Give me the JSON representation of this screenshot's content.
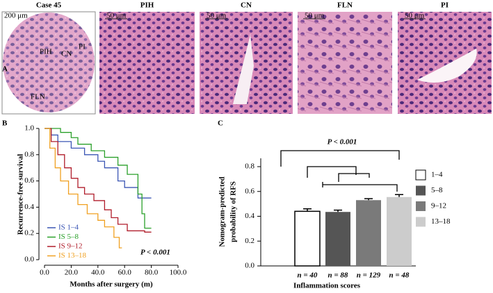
{
  "figure": {
    "panel_labels": [
      "A",
      "B",
      "C"
    ],
    "images": [
      {
        "title": "Case 45",
        "scale": "200 μm",
        "regions": [
          "PIH",
          "CN",
          "PI",
          "FLN"
        ]
      },
      {
        "title": "PIH",
        "scale": "50 μm"
      },
      {
        "title": "CN",
        "scale": "50 μm"
      },
      {
        "title": "FLN",
        "scale": "50 μm"
      },
      {
        "title": "PI",
        "scale": "50 μm"
      }
    ]
  },
  "chart_data": [
    {
      "type": "line",
      "step": true,
      "xlabel": "Months after surgery (m)",
      "ylabel": "Recurrence-free survival",
      "annotation": "P < 0.001",
      "xlim": [
        0,
        100
      ],
      "xticks": [
        {
          "value": 0,
          "label": "0.0"
        },
        {
          "value": 20,
          "label": "20.0"
        },
        {
          "value": 40,
          "label": "40.0"
        },
        {
          "value": 60,
          "label": "60.0"
        },
        {
          "value": 80,
          "label": "80.0"
        },
        {
          "value": 100,
          "label": "100.0"
        }
      ],
      "ylim": [
        0,
        1
      ],
      "yticks": [
        {
          "value": 0,
          "label": "0.0"
        },
        0.2,
        0.4,
        0.6,
        0.8,
        {
          "value": 1,
          "label": "1.0"
        }
      ],
      "legend": "lower-left",
      "series": [
        {
          "name": "IS 1–4",
          "color": "#3a55b4",
          "x": [
            0,
            5,
            10,
            20,
            30,
            40,
            45,
            55,
            60,
            70,
            80
          ],
          "values": [
            1,
            0.95,
            0.9,
            0.85,
            0.8,
            0.75,
            0.7,
            0.6,
            0.55,
            0.47,
            0.47
          ]
        },
        {
          "name": "IS 5–8",
          "color": "#2aa02a",
          "x": [
            0,
            12,
            20,
            25,
            35,
            45,
            55,
            62,
            70,
            73,
            75,
            80
          ],
          "values": [
            1,
            0.97,
            0.93,
            0.88,
            0.83,
            0.78,
            0.72,
            0.65,
            0.5,
            0.35,
            0.24,
            0.24
          ]
        },
        {
          "name": "IS 9–12",
          "color": "#b01c2a",
          "x": [
            0,
            5,
            10,
            15,
            20,
            25,
            30,
            37,
            45,
            50,
            55,
            62,
            75,
            80
          ],
          "values": [
            1,
            0.9,
            0.8,
            0.7,
            0.62,
            0.55,
            0.5,
            0.45,
            0.38,
            0.32,
            0.27,
            0.22,
            0.21,
            0.21
          ]
        },
        {
          "name": "IS 13–18",
          "color": "#f0a020",
          "x": [
            0,
            4,
            8,
            12,
            18,
            25,
            32,
            40,
            45,
            52,
            56,
            58
          ],
          "values": [
            1,
            0.85,
            0.7,
            0.6,
            0.5,
            0.42,
            0.35,
            0.3,
            0.25,
            0.17,
            0.09,
            0.09
          ]
        }
      ]
    },
    {
      "type": "bar",
      "xlabel": "Inflammation scores",
      "ylabel": [
        "Nomogram-predicted",
        "probability of RFS"
      ],
      "annotation": "P < 0.001",
      "categories": [
        "1–4",
        "5–8",
        "9–12",
        "13–18"
      ],
      "n_labels": [
        "n = 40",
        "n = 88",
        "n = 129",
        "n = 48"
      ],
      "values": [
        0.44,
        0.435,
        0.53,
        0.555
      ],
      "errors": [
        0.02,
        0.015,
        0.012,
        0.02
      ],
      "colors": [
        "#ffffff",
        "#555555",
        "#7a7a7a",
        "#cccccc"
      ],
      "ylim": [
        0,
        0.8
      ],
      "yticks": [
        {
          "value": 0,
          "label": "0.0"
        },
        0.2,
        0.4,
        0.6,
        0.8
      ],
      "legend": "right"
    }
  ]
}
